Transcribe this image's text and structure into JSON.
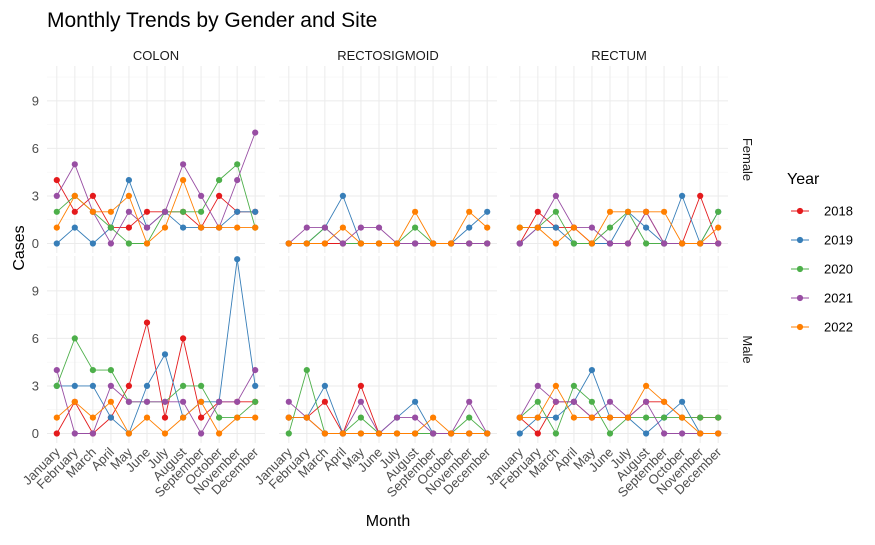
{
  "chart_data": {
    "type": "line",
    "title": "Monthly Trends by Gender and Site",
    "xlabel": "Month",
    "ylabel": "Cases",
    "legend_title": "Year",
    "legend_position": "right",
    "grid": true,
    "ylim": [
      -0.6,
      11.2
    ],
    "yticks": [
      0,
      3,
      6,
      9
    ],
    "months": [
      "January",
      "February",
      "March",
      "April",
      "May",
      "June",
      "July",
      "August",
      "September",
      "October",
      "November",
      "December"
    ],
    "sites": [
      "COLON",
      "RECTOSIGMOID",
      "RECTUM"
    ],
    "genders": [
      "Female",
      "Male"
    ],
    "colors": {
      "2018": "#e41a1c",
      "2019": "#377eb8",
      "2020": "#4daf4a",
      "2021": "#984ea3",
      "2022": "#ff7f00"
    },
    "years": [
      "2018",
      "2019",
      "2020",
      "2021",
      "2022"
    ],
    "panels": [
      {
        "site": "COLON",
        "gender": "Female",
        "series": [
          {
            "name": "2018",
            "values": [
              4,
              2,
              3,
              1,
              1,
              2,
              2,
              2,
              1,
              3,
              2,
              2
            ]
          },
          {
            "name": "2019",
            "values": [
              0,
              1,
              0,
              1,
              4,
              1,
              2,
              1,
              1,
              1,
              2,
              2
            ]
          },
          {
            "name": "2020",
            "values": [
              2,
              3,
              2,
              1,
              0,
              0,
              2,
              2,
              2,
              4,
              5,
              1
            ]
          },
          {
            "name": "2021",
            "values": [
              3,
              5,
              2,
              0,
              2,
              1,
              2,
              5,
              3,
              1,
              4,
              7
            ]
          },
          {
            "name": "2022",
            "values": [
              1,
              3,
              2,
              2,
              3,
              0,
              1,
              4,
              1,
              1,
              1,
              1
            ]
          }
        ]
      },
      {
        "site": "RECTOSIGMOID",
        "gender": "Female",
        "series": [
          {
            "name": "2018",
            "values": [
              0,
              0,
              0,
              0,
              0,
              0,
              0,
              0,
              0,
              0,
              0,
              0
            ]
          },
          {
            "name": "2019",
            "values": [
              0,
              0,
              1,
              3,
              0,
              0,
              0,
              0,
              0,
              0,
              1,
              2
            ]
          },
          {
            "name": "2020",
            "values": [
              0,
              0,
              1,
              0,
              0,
              0,
              0,
              1,
              0,
              0,
              0,
              0
            ]
          },
          {
            "name": "2021",
            "values": [
              0,
              1,
              1,
              0,
              1,
              1,
              0,
              0,
              0,
              0,
              0,
              0
            ]
          },
          {
            "name": "2022",
            "values": [
              0,
              0,
              0,
              1,
              0,
              0,
              0,
              2,
              0,
              0,
              2,
              1
            ]
          }
        ]
      },
      {
        "site": "RECTUM",
        "gender": "Female",
        "series": [
          {
            "name": "2018",
            "values": [
              0,
              2,
              1,
              1,
              0,
              0,
              0,
              2,
              0,
              0,
              3,
              0
            ]
          },
          {
            "name": "2019",
            "values": [
              0,
              1,
              1,
              0,
              0,
              0,
              2,
              1,
              0,
              3,
              0,
              2
            ]
          },
          {
            "name": "2020",
            "values": [
              1,
              1,
              2,
              0,
              0,
              1,
              2,
              0,
              0,
              0,
              0,
              2
            ]
          },
          {
            "name": "2021",
            "values": [
              0,
              1,
              3,
              1,
              1,
              0,
              0,
              2,
              0,
              0,
              0,
              0
            ]
          },
          {
            "name": "2022",
            "values": [
              1,
              1,
              0,
              1,
              0,
              2,
              2,
              2,
              2,
              0,
              0,
              1
            ]
          }
        ]
      },
      {
        "site": "COLON",
        "gender": "Male",
        "series": [
          {
            "name": "2018",
            "values": [
              0,
              2,
              0,
              1,
              3,
              7,
              1,
              6,
              1,
              2,
              2,
              2
            ]
          },
          {
            "name": "2019",
            "values": [
              3,
              3,
              3,
              1,
              0,
              3,
              5,
              1,
              2,
              2,
              11,
              3
            ]
          },
          {
            "name": "2020",
            "values": [
              3,
              6,
              4,
              4,
              2,
              2,
              2,
              3,
              3,
              1,
              1,
              2
            ]
          },
          {
            "name": "2021",
            "values": [
              4,
              0,
              0,
              3,
              2,
              2,
              2,
              2,
              0,
              2,
              2,
              4
            ]
          },
          {
            "name": "2022",
            "values": [
              1,
              2,
              1,
              2,
              0,
              1,
              0,
              1,
              2,
              0,
              1,
              1
            ]
          }
        ]
      },
      {
        "site": "RECTOSIGMOID",
        "gender": "Male",
        "series": [
          {
            "name": "2018",
            "values": [
              1,
              1,
              2,
              0,
              3,
              0,
              0,
              0,
              0,
              0,
              0,
              0
            ]
          },
          {
            "name": "2019",
            "values": [
              1,
              1,
              3,
              0,
              0,
              0,
              1,
              2,
              0,
              0,
              0,
              0
            ]
          },
          {
            "name": "2020",
            "values": [
              0,
              4,
              0,
              0,
              1,
              0,
              0,
              0,
              0,
              0,
              1,
              0
            ]
          },
          {
            "name": "2021",
            "values": [
              2,
              1,
              0,
              0,
              2,
              0,
              1,
              1,
              0,
              0,
              2,
              0
            ]
          },
          {
            "name": "2022",
            "values": [
              1,
              1,
              0,
              0,
              0,
              0,
              0,
              0,
              1,
              0,
              0,
              0
            ]
          }
        ]
      },
      {
        "site": "RECTUM",
        "gender": "Male",
        "series": [
          {
            "name": "2018",
            "values": [
              1,
              0,
              2,
              2,
              1,
              1,
              1,
              2,
              2,
              1,
              1,
              1
            ]
          },
          {
            "name": "2019",
            "values": [
              0,
              1,
              1,
              2,
              4,
              1,
              1,
              0,
              1,
              2,
              0,
              0
            ]
          },
          {
            "name": "2020",
            "values": [
              1,
              2,
              0,
              3,
              2,
              0,
              1,
              1,
              1,
              1,
              1,
              1
            ]
          },
          {
            "name": "2021",
            "values": [
              1,
              3,
              2,
              2,
              1,
              2,
              1,
              2,
              0,
              0,
              0,
              0
            ]
          },
          {
            "name": "2022",
            "values": [
              1,
              1,
              3,
              1,
              1,
              1,
              1,
              3,
              2,
              1,
              0,
              0
            ]
          }
        ]
      }
    ]
  }
}
